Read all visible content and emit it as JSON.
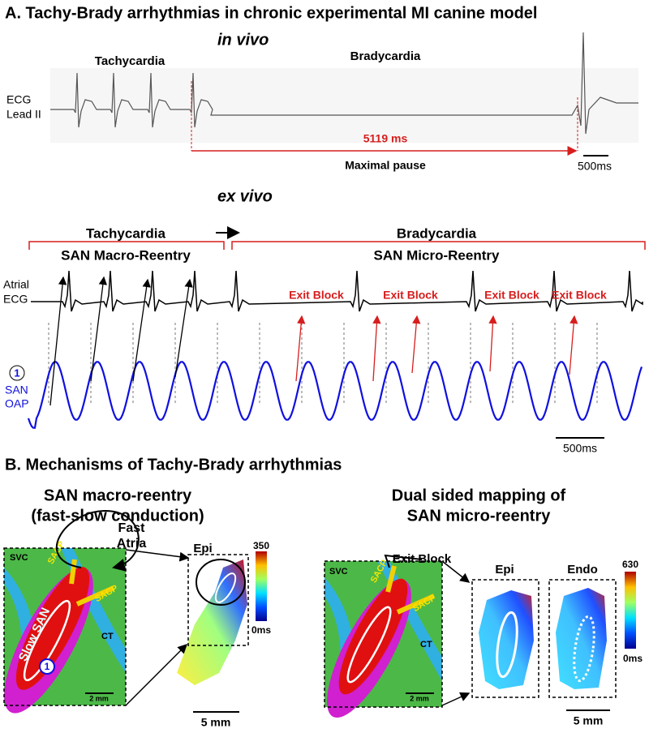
{
  "panel_a": {
    "title": "A. Tachy-Brady arrhythmias in chronic experimental MI canine model",
    "in_vivo": {
      "heading": "in vivo",
      "tachycardia": "Tachycardia",
      "bradycardia": "Bradycardia",
      "lead": [
        "ECG",
        "Lead II"
      ],
      "pause": "5119 ms",
      "pause_label": "Maximal pause",
      "scale": "500ms"
    },
    "ex_vivo": {
      "heading": "ex vivo",
      "tachycardia": "Tachycardia",
      "macro": "SAN Macro-Reentry",
      "bradycardia": "Bradycardia",
      "micro": "SAN Micro-Reentry",
      "ecg": [
        "Atrial",
        "ECG"
      ],
      "exit_blocks": [
        "Exit Block",
        "Exit Block",
        "Exit Block",
        "Exit Block"
      ],
      "site": "1",
      "oap": [
        "SAN",
        "OAP"
      ],
      "scale": "500ms"
    }
  },
  "panel_b": {
    "title": "B. Mechanisms of Tachy-Brady arrhythmias",
    "left": {
      "heading": [
        "SAN macro-reentry",
        "(fast-slow conduction)"
      ],
      "fast": [
        "Fast",
        "Atria"
      ],
      "svc": "SVC",
      "sacp": [
        "SACP",
        "SACP"
      ],
      "ct": "CT",
      "slow": "Slow SAN",
      "site": "1",
      "scale_anatomy": "2 mm",
      "map_label": "Epi",
      "cbar_max": "350",
      "cbar_min": "0ms",
      "scale_map": "5 mm"
    },
    "right": {
      "heading": [
        "Dual sided mapping of",
        "SAN micro-reentry"
      ],
      "exit_block": "Exit Block",
      "svc": "SVC",
      "sacp": [
        "SACP",
        "SACP"
      ],
      "ct": "CT",
      "scale_anatomy": "2 mm",
      "maps": [
        "Epi",
        "Endo"
      ],
      "cbar_max": "630",
      "cbar_min": "0ms",
      "scale_map": "5 mm"
    }
  }
}
